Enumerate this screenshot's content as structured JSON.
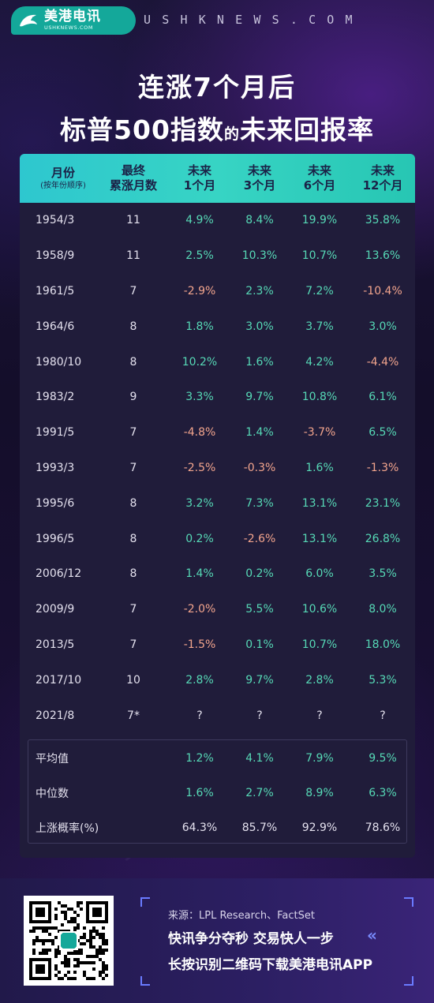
{
  "header": {
    "logo_cn": "美港电讯",
    "logo_en": "USHKNEWS.COM",
    "site": "USHKNEWS.COM"
  },
  "title": {
    "line1": "连涨7个月后",
    "line2_main": "标普500指数",
    "line2_small": "的",
    "line2_end": "未来回报率"
  },
  "table": {
    "headers": [
      {
        "line1": "月份",
        "line2": "(按年份顺序)"
      },
      {
        "line1": "最终",
        "line2": "累涨月数"
      },
      {
        "line1": "未来",
        "line2": "1个月"
      },
      {
        "line1": "未来",
        "line2": "3个月"
      },
      {
        "line1": "未来",
        "line2": "6个月"
      },
      {
        "line1": "未来",
        "line2": "12个月"
      }
    ],
    "rows": [
      {
        "month": "1954/3",
        "months_up": "11",
        "r1": "4.9%",
        "r3": "8.4%",
        "r6": "19.9%",
        "r12": "35.8%"
      },
      {
        "month": "1958/9",
        "months_up": "11",
        "r1": "2.5%",
        "r3": "10.3%",
        "r6": "10.7%",
        "r12": "13.6%"
      },
      {
        "month": "1961/5",
        "months_up": "7",
        "r1": "-2.9%",
        "r3": "2.3%",
        "r6": "7.2%",
        "r12": "-10.4%"
      },
      {
        "month": "1964/6",
        "months_up": "8",
        "r1": "1.8%",
        "r3": "3.0%",
        "r6": "3.7%",
        "r12": "3.0%"
      },
      {
        "month": "1980/10",
        "months_up": "8",
        "r1": "10.2%",
        "r3": "1.6%",
        "r6": "4.2%",
        "r12": "-4.4%"
      },
      {
        "month": "1983/2",
        "months_up": "9",
        "r1": "3.3%",
        "r3": "9.7%",
        "r6": "10.8%",
        "r12": "6.1%"
      },
      {
        "month": "1991/5",
        "months_up": "7",
        "r1": "-4.8%",
        "r3": "1.4%",
        "r6": "-3.7%",
        "r12": "6.5%"
      },
      {
        "month": "1993/3",
        "months_up": "7",
        "r1": "-2.5%",
        "r3": "-0.3%",
        "r6": "1.6%",
        "r12": "-1.3%"
      },
      {
        "month": "1995/6",
        "months_up": "8",
        "r1": "3.2%",
        "r3": "7.3%",
        "r6": "13.1%",
        "r12": "23.1%"
      },
      {
        "month": "1996/5",
        "months_up": "8",
        "r1": "0.2%",
        "r3": "-2.6%",
        "r6": "13.1%",
        "r12": "26.8%"
      },
      {
        "month": "2006/12",
        "months_up": "8",
        "r1": "1.4%",
        "r3": "0.2%",
        "r6": "6.0%",
        "r12": "3.5%"
      },
      {
        "month": "2009/9",
        "months_up": "7",
        "r1": "-2.0%",
        "r3": "5.5%",
        "r6": "10.6%",
        "r12": "8.0%"
      },
      {
        "month": "2013/5",
        "months_up": "7",
        "r1": "-1.5%",
        "r3": "0.1%",
        "r6": "10.7%",
        "r12": "18.0%"
      },
      {
        "month": "2017/10",
        "months_up": "10",
        "r1": "2.8%",
        "r3": "9.7%",
        "r6": "2.8%",
        "r12": "5.3%"
      },
      {
        "month": "2021/8",
        "months_up": "7*",
        "r1": "?",
        "r3": "?",
        "r6": "?",
        "r12": "?"
      }
    ],
    "summary": [
      {
        "label": "平均值",
        "r1": "1.2%",
        "r3": "4.1%",
        "r6": "7.9%",
        "r12": "9.5%"
      },
      {
        "label": "中位数",
        "r1": "1.6%",
        "r3": "2.7%",
        "r6": "8.9%",
        "r12": "6.3%"
      },
      {
        "label": "上涨概率(%)",
        "r1": "64.3%",
        "r3": "85.7%",
        "r6": "92.9%",
        "r12": "78.6%"
      }
    ]
  },
  "footer": {
    "source": "来源：LPL Research、FactSet",
    "slogan1": "快讯争分夺秒  交易快人一步",
    "slogan2": "长按识别二维码下载美港电讯APP",
    "chevron": "«"
  },
  "watermark": "美港电讯",
  "colors": {
    "positive": "#56d9b6",
    "negative": "#f3a58d",
    "header_bg": "#2ec7cf",
    "brand": "#14a89a"
  }
}
